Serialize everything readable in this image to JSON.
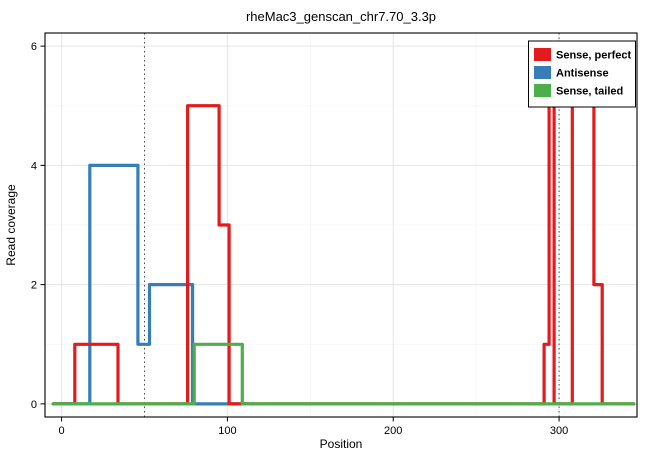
{
  "title": "rheMac3_genscan_chr7.70_3.3p",
  "chart_data": {
    "type": "line",
    "step": true,
    "title": "rheMac3_genscan_chr7.70_3.3p",
    "xlabel": "Position",
    "ylabel": "Read coverage",
    "xlim": [
      -10,
      347
    ],
    "ylim": [
      -0.22,
      6.22
    ],
    "x_ticks": [
      0,
      100,
      200,
      300
    ],
    "y_ticks": [
      0,
      2,
      4,
      6
    ],
    "x_minor": [
      50,
      150,
      250
    ],
    "y_minor": [
      1,
      3,
      5
    ],
    "grid": true,
    "vlines": [
      {
        "x": 50,
        "style": "dotted"
      },
      {
        "x": 300,
        "style": "dotted"
      }
    ],
    "series": [
      {
        "name": "Antisense",
        "color": "#377eb8",
        "points": [
          [
            -5,
            0
          ],
          [
            17,
            0
          ],
          [
            17,
            4
          ],
          [
            46,
            4
          ],
          [
            46,
            1
          ],
          [
            53,
            1
          ],
          [
            53,
            2
          ],
          [
            79,
            2
          ],
          [
            79,
            0
          ],
          [
            112,
            0
          ]
        ]
      },
      {
        "name": "Sense, perfect",
        "color": "#e41a1c",
        "points": [
          [
            -5,
            0
          ],
          [
            8,
            0
          ],
          [
            8,
            1
          ],
          [
            34,
            1
          ],
          [
            34,
            0
          ],
          [
            76,
            0
          ],
          [
            76,
            5
          ],
          [
            95,
            5
          ],
          [
            95,
            3
          ],
          [
            101,
            3
          ],
          [
            101,
            0
          ],
          [
            291,
            0
          ],
          [
            291,
            1
          ],
          [
            294,
            1
          ],
          [
            294,
            6
          ],
          [
            297,
            6
          ],
          [
            297,
            0
          ],
          [
            308,
            0
          ],
          [
            308,
            5
          ],
          [
            321,
            5
          ],
          [
            321,
            2
          ],
          [
            326,
            2
          ],
          [
            326,
            0
          ],
          [
            345,
            0
          ]
        ]
      },
      {
        "name": "Sense, tailed",
        "color": "#4daf4a",
        "points": [
          [
            -5,
            0
          ],
          [
            80,
            0
          ],
          [
            80,
            1
          ],
          [
            109,
            1
          ],
          [
            109,
            0
          ],
          [
            345,
            0
          ]
        ]
      }
    ],
    "legend": {
      "position": "top-right",
      "entries": [
        {
          "label": "Sense, perfect",
          "color": "#e41a1c"
        },
        {
          "label": "Antisense",
          "color": "#377eb8"
        },
        {
          "label": "Sense, tailed",
          "color": "#4daf4a"
        }
      ]
    }
  }
}
